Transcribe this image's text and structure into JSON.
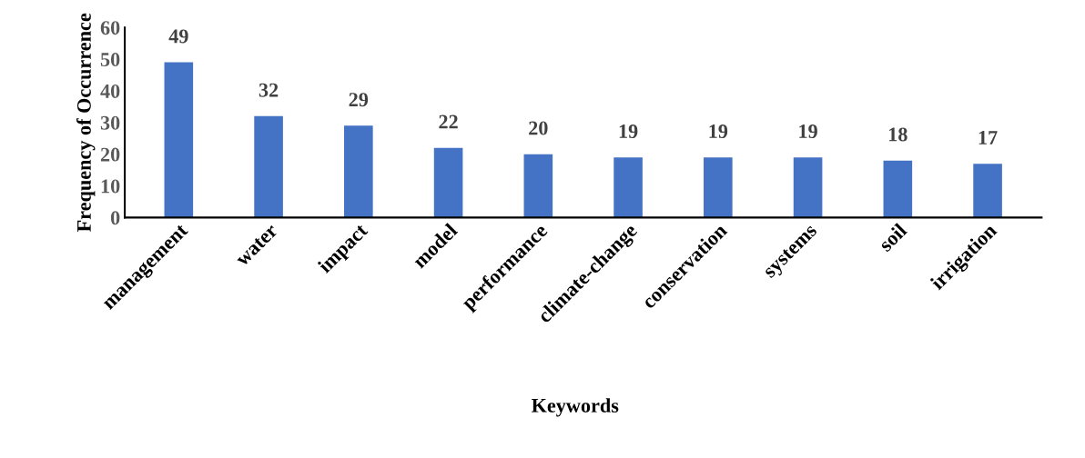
{
  "chart_data": {
    "type": "bar",
    "xlabel": "Keywords",
    "ylabel": "Frequency of Occurrence",
    "categories": [
      "management",
      "water",
      "impact",
      "model",
      "performance",
      "climate-change",
      "conservation",
      "systems",
      "soil",
      "irrigation"
    ],
    "values": [
      49,
      32,
      29,
      22,
      20,
      19,
      19,
      19,
      18,
      17
    ],
    "color": "#4472c4",
    "ylim": [
      0,
      60
    ],
    "yticks": [
      0,
      10,
      20,
      30,
      40,
      50,
      60
    ],
    "data_labels": true,
    "grid": false
  }
}
